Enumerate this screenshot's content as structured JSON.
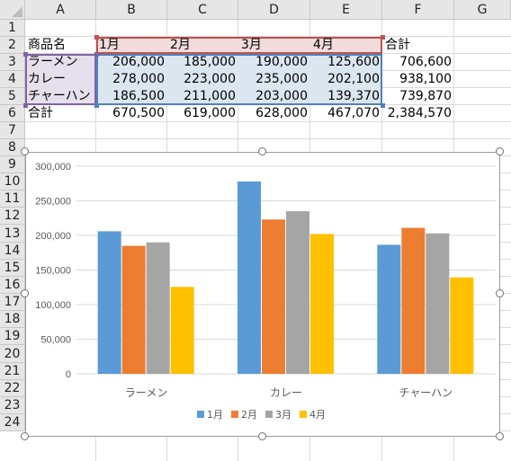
{
  "columns": [
    "A",
    "B",
    "C",
    "D",
    "E",
    "F",
    "G"
  ],
  "rows": [
    "1",
    "2",
    "3",
    "4",
    "5",
    "6",
    "7",
    "8",
    "9",
    "10",
    "11",
    "12",
    "13",
    "14",
    "15",
    "16",
    "17",
    "18",
    "19",
    "20",
    "21",
    "22",
    "23",
    "24"
  ],
  "table": {
    "header": [
      "商品名",
      "1月",
      "2月",
      "3月",
      "4月",
      "合計"
    ],
    "body": [
      [
        "ラーメン",
        "206,000",
        "185,000",
        "190,000",
        "125,600",
        "706,600"
      ],
      [
        "カレー",
        "278,000",
        "223,000",
        "235,000",
        "202,100",
        "938,100"
      ],
      [
        "チャーハン",
        "186,500",
        "211,000",
        "203,000",
        "139,370",
        "739,870"
      ],
      [
        "合計",
        "670,500",
        "619,000",
        "628,000",
        "467,070",
        "2,384,570"
      ]
    ]
  },
  "colors": {
    "highlight_red": "#c0504d",
    "highlight_purple": "#8064a2",
    "highlight_blue": "#4f81bd"
  },
  "chart_data": {
    "type": "bar",
    "categories": [
      "ラーメン",
      "カレー",
      "チャーハン"
    ],
    "series": [
      {
        "name": "1月",
        "values": [
          206000,
          278000,
          186500
        ],
        "color": "#5b9bd5"
      },
      {
        "name": "2月",
        "values": [
          185000,
          223000,
          211000
        ],
        "color": "#ed7d31"
      },
      {
        "name": "3月",
        "values": [
          190000,
          235000,
          203000
        ],
        "color": "#a5a5a5"
      },
      {
        "name": "4月",
        "values": [
          125600,
          202100,
          139370
        ],
        "color": "#ffc000"
      }
    ],
    "ylim": [
      0,
      300000
    ],
    "yticks": [
      "0",
      "50,000",
      "100,000",
      "150,000",
      "200,000",
      "250,000",
      "300,000"
    ],
    "title": "",
    "xlabel": "",
    "ylabel": "",
    "legend_position": "bottom",
    "grid": true
  }
}
